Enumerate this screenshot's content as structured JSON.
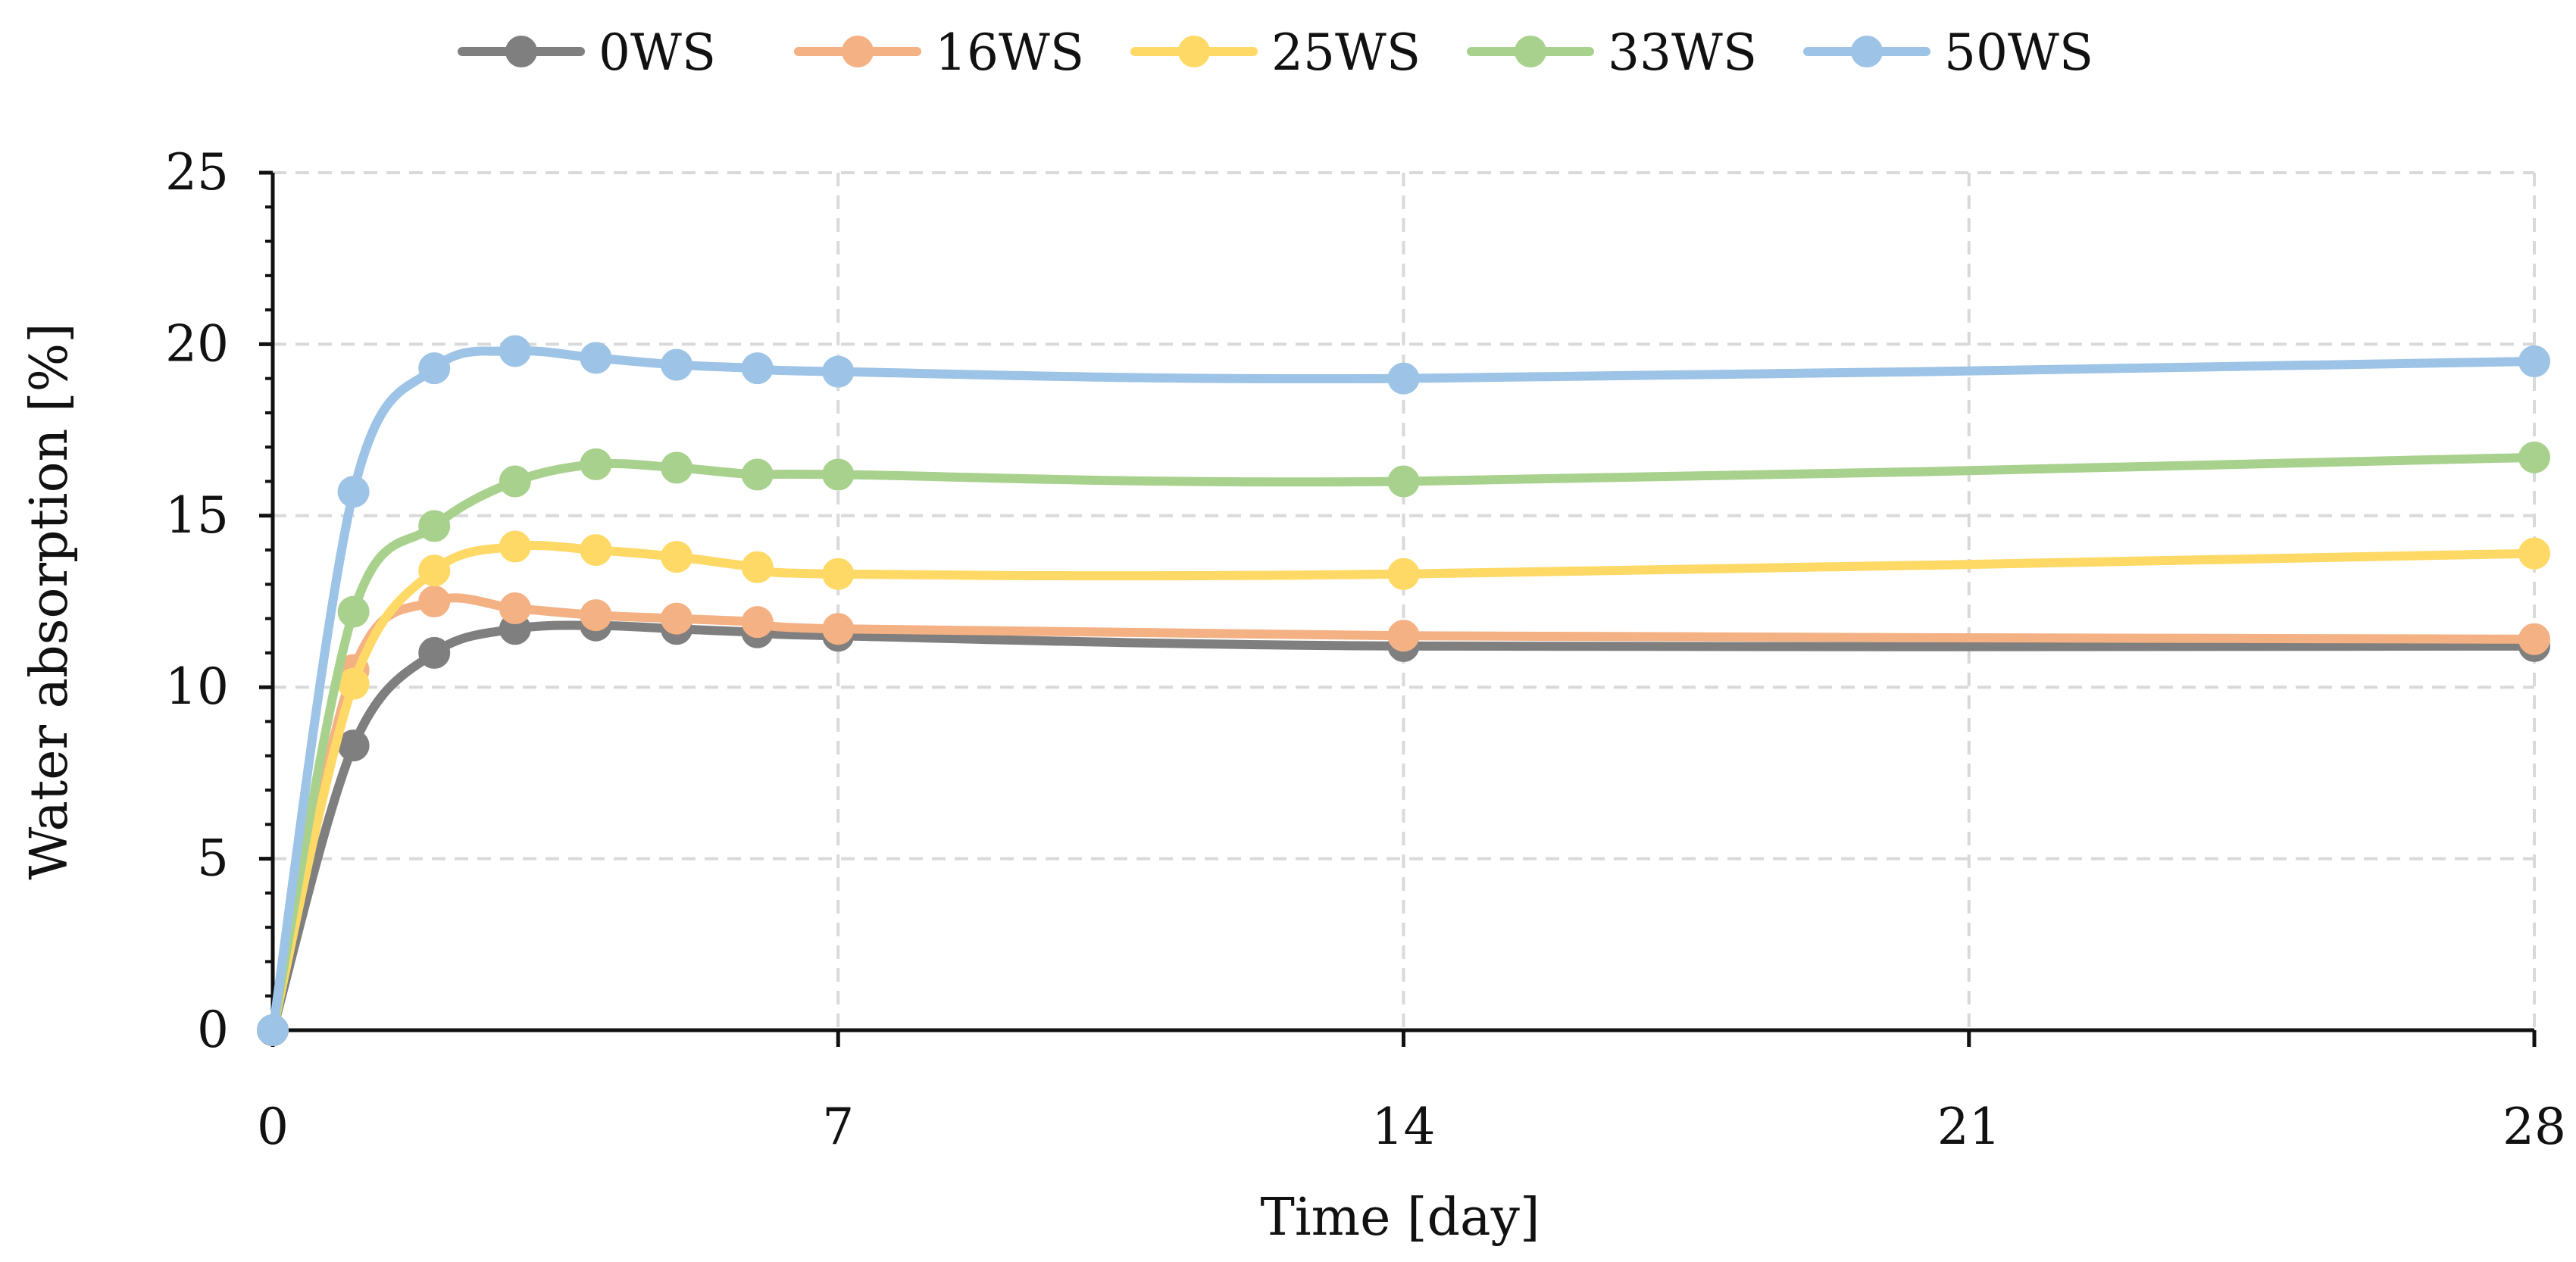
{
  "chart_data": {
    "type": "line",
    "title": "",
    "xlabel": "Time [day]",
    "ylabel": "Water absorption [%]",
    "xlim": [
      0,
      28
    ],
    "ylim": [
      0,
      25
    ],
    "x_ticks": [
      0,
      7,
      14,
      21,
      28
    ],
    "y_ticks": [
      0,
      5,
      10,
      15,
      20,
      25
    ],
    "grid": true,
    "legend_position": "top",
    "series": [
      {
        "name": "0WS",
        "color": "#7f7f7f",
        "points": [
          {
            "x": 0,
            "y": 0
          },
          {
            "x": 1,
            "y": 8.3
          },
          {
            "x": 2,
            "y": 11.0
          },
          {
            "x": 3,
            "y": 11.7
          },
          {
            "x": 4,
            "y": 11.8
          },
          {
            "x": 5,
            "y": 11.7
          },
          {
            "x": 6,
            "y": 11.6
          },
          {
            "x": 7,
            "y": 11.5
          },
          {
            "x": 14,
            "y": 11.2
          },
          {
            "x": 28,
            "y": 11.2
          }
        ]
      },
      {
        "name": "16WS",
        "color": "#f4b183",
        "points": [
          {
            "x": 0,
            "y": 0
          },
          {
            "x": 1,
            "y": 10.5
          },
          {
            "x": 2,
            "y": 12.5
          },
          {
            "x": 3,
            "y": 12.3
          },
          {
            "x": 4,
            "y": 12.1
          },
          {
            "x": 5,
            "y": 12.0
          },
          {
            "x": 6,
            "y": 11.9
          },
          {
            "x": 7,
            "y": 11.7
          },
          {
            "x": 14,
            "y": 11.5
          },
          {
            "x": 28,
            "y": 11.4
          }
        ]
      },
      {
        "name": "25WS",
        "color": "#ffd966",
        "points": [
          {
            "x": 0,
            "y": 0
          },
          {
            "x": 1,
            "y": 10.1
          },
          {
            "x": 2,
            "y": 13.4
          },
          {
            "x": 3,
            "y": 14.1
          },
          {
            "x": 4,
            "y": 14.0
          },
          {
            "x": 5,
            "y": 13.8
          },
          {
            "x": 6,
            "y": 13.5
          },
          {
            "x": 7,
            "y": 13.3
          },
          {
            "x": 14,
            "y": 13.3
          },
          {
            "x": 28,
            "y": 13.9
          }
        ]
      },
      {
        "name": "33WS",
        "color": "#a9d18e",
        "points": [
          {
            "x": 0,
            "y": 0
          },
          {
            "x": 1,
            "y": 12.2
          },
          {
            "x": 2,
            "y": 14.7
          },
          {
            "x": 3,
            "y": 16.0
          },
          {
            "x": 4,
            "y": 16.5
          },
          {
            "x": 5,
            "y": 16.4
          },
          {
            "x": 6,
            "y": 16.2
          },
          {
            "x": 7,
            "y": 16.2
          },
          {
            "x": 14,
            "y": 16.0
          },
          {
            "x": 28,
            "y": 16.7
          }
        ]
      },
      {
        "name": "50WS",
        "color": "#9dc3e6",
        "points": [
          {
            "x": 0,
            "y": 0
          },
          {
            "x": 1,
            "y": 15.7
          },
          {
            "x": 2,
            "y": 19.3
          },
          {
            "x": 3,
            "y": 19.8
          },
          {
            "x": 4,
            "y": 19.6
          },
          {
            "x": 5,
            "y": 19.4
          },
          {
            "x": 6,
            "y": 19.3
          },
          {
            "x": 7,
            "y": 19.2
          },
          {
            "x": 14,
            "y": 19.0
          },
          {
            "x": 28,
            "y": 19.5
          }
        ]
      }
    ]
  }
}
